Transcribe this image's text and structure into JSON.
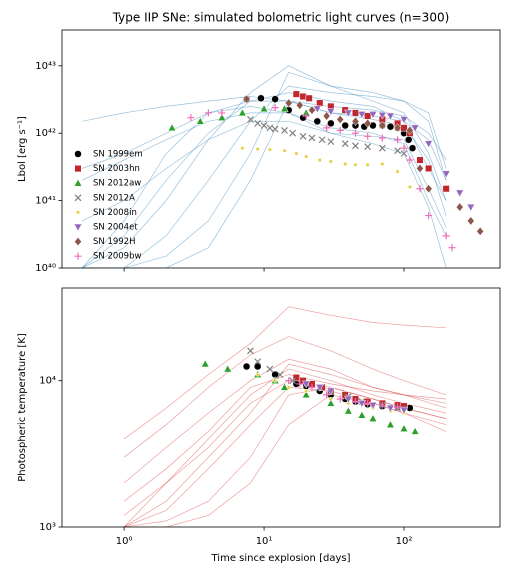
{
  "chart_data": [
    {
      "type": "line",
      "title": "Type IIP SNe: simulated bolometric light curves (n=300)",
      "ylabel": "Lbol [erg s⁻¹]",
      "xlog": true,
      "ylog": true,
      "xlim": [
        0.36,
        485
      ],
      "ylim": [
        1e+40,
        3.4e+43
      ],
      "xticks": [
        1,
        10,
        100
      ],
      "yticks": [
        {
          "value": 1e+40,
          "label": "10⁴⁰"
        },
        {
          "value": 1e+41,
          "label": "10⁴¹"
        },
        {
          "value": 1e+42,
          "label": "10⁴²"
        },
        {
          "value": 1e+43,
          "label": "10⁴³"
        }
      ],
      "legend": "upper left",
      "simulation_color": "#1f77b4",
      "simulation_x": [
        0.5,
        1,
        2,
        4,
        8,
        15,
        30,
        60,
        100,
        150,
        200
      ],
      "simulations": [
        [
          1e+40,
          3e+40,
          2e+41,
          1e+42,
          3e+42,
          4e+42,
          3e+42,
          2.5e+42,
          1.5e+42,
          3e+41,
          1e+41
        ],
        [
          3e+41,
          5e+41,
          1e+42,
          2e+42,
          3e+42,
          3e+42,
          2e+42,
          1.8e+42,
          1.5e+42,
          8e+41,
          2e+41
        ],
        [
          1e+40,
          1e+40,
          1.5e+40,
          5e+40,
          5e+41,
          8e+42,
          5e+42,
          3e+42,
          2e+42,
          5e+41,
          1e+41
        ],
        [
          2e+41,
          4e+41,
          8e+41,
          1.5e+42,
          2e+42,
          2e+42,
          1.2e+42,
          1e+42,
          7e+41,
          1e+41,
          3e+40
        ],
        [
          1e+40,
          2e+40,
          1e+41,
          8e+41,
          4e+42,
          1e+43,
          5e+42,
          4e+42,
          3e+42,
          2e+42,
          3e+41
        ],
        [
          5e+40,
          1e+41,
          3e+41,
          8e+41,
          1.5e+42,
          1.5e+42,
          1e+42,
          9e+41,
          8e+41,
          1.5e+41,
          4e+40
        ],
        [
          1e+40,
          1e+40,
          1e+40,
          2e+40,
          2e+41,
          3e+42,
          2e+42,
          1.6e+42,
          1.3e+42,
          4e+41,
          6e+40
        ],
        [
          1.5e+42,
          2e+42,
          2.5e+42,
          3e+42,
          3.5e+42,
          3e+42,
          2.5e+42,
          2.2e+42,
          1.8e+42,
          1e+42,
          4e+41
        ],
        [
          1e+40,
          5e+40,
          5e+41,
          2e+42,
          2.5e+42,
          2e+42,
          1e+42,
          7e+41,
          5e+41,
          8e+40,
          1e+40
        ],
        [
          1e+40,
          1e+40,
          3e+40,
          2e+41,
          1.5e+42,
          5e+42,
          4e+42,
          3.5e+42,
          3e+42,
          1.5e+42,
          2e+41
        ]
      ],
      "series": [
        {
          "name": "SN 1999em",
          "color": "#000000",
          "marker": "o",
          "x": [
            7.5,
            9.5,
            12,
            15,
            19,
            24,
            30,
            38,
            45,
            52,
            60,
            70,
            80,
            90,
            100,
            108,
            115
          ],
          "values": [
            3.2e+42,
            3.3e+42,
            3.2e+42,
            2.2e+42,
            1.7e+42,
            1.5e+42,
            1.4e+42,
            1.3e+42,
            1.3e+42,
            1.25e+42,
            1.3e+42,
            1.3e+42,
            1.25e+42,
            1.2e+42,
            1e+42,
            8e+41,
            6e+41
          ]
        },
        {
          "name": "SN 2003hn",
          "color": "#c0272d",
          "marker": "s",
          "x": [
            17,
            19,
            21,
            25,
            30,
            38,
            45,
            55,
            70,
            90,
            100,
            110,
            130,
            150,
            200
          ],
          "values": [
            3.8e+42,
            3.5e+42,
            3.3e+42,
            2.8e+42,
            2.5e+42,
            2.2e+42,
            2e+42,
            1.8e+42,
            1.6e+42,
            1.4e+42,
            1.2e+42,
            1e+42,
            4e+41,
            3e+41,
            1.5e+41
          ]
        },
        {
          "name": "SN 2012aw",
          "color": "#2ca02c",
          "marker": "^",
          "x": [
            2.2,
            3.5,
            5,
            7,
            10,
            14,
            20
          ],
          "values": [
            1.2e+42,
            1.5e+42,
            1.7e+42,
            2e+42,
            2.3e+42,
            2.3e+42,
            2e+42
          ]
        },
        {
          "name": "SN 2012A",
          "color": "#808080",
          "marker": "x",
          "x": [
            8,
            9,
            10,
            11,
            12,
            14,
            16,
            19,
            22,
            26,
            30,
            38,
            45,
            55,
            70,
            90,
            100
          ],
          "values": [
            1.6e+42,
            1.4e+42,
            1.3e+42,
            1.2e+42,
            1.15e+42,
            1.1e+42,
            1e+42,
            9e+41,
            8.5e+41,
            8e+41,
            7.5e+41,
            7e+41,
            6.5e+41,
            6.3e+41,
            6e+41,
            5.5e+41,
            5e+41
          ]
        },
        {
          "name": "SN 2008in",
          "color": "#e0d040",
          "marker": ".",
          "x": [
            7,
            9,
            11,
            14,
            17,
            20,
            25,
            30,
            38,
            45,
            55,
            70,
            90,
            110
          ],
          "values": [
            6e+41,
            5.8e+41,
            5.7e+41,
            5.5e+41,
            5e+41,
            4.5e+41,
            4e+41,
            3.8e+41,
            3.5e+41,
            3.4e+41,
            3.4e+41,
            3.5e+41,
            2.7e+41,
            1.6e+41
          ]
        },
        {
          "name": "SN 2004et",
          "color": "#9467bd",
          "marker": "v",
          "x": [
            24,
            30,
            40,
            50,
            60,
            70,
            80,
            100,
            120,
            150,
            200,
            250,
            300
          ],
          "values": [
            2.3e+42,
            2.1e+42,
            2e+42,
            1.9e+42,
            1.9e+42,
            1.85e+42,
            1.8e+42,
            1.6e+42,
            1.2e+42,
            7e+41,
            2.5e+41,
            1.3e+41,
            8e+40
          ]
        },
        {
          "name": "SN 1992H",
          "color": "#8c564b",
          "marker": "D",
          "x": [
            7.5,
            15,
            18,
            22,
            28,
            35,
            45,
            55,
            70,
            90,
            110,
            130,
            150,
            250,
            300,
            350
          ],
          "values": [
            3.2e+42,
            2.8e+42,
            2.6e+42,
            2.2e+42,
            1.8e+42,
            1.6e+42,
            1.5e+42,
            1.4e+42,
            1.3e+42,
            1.2e+42,
            1.1e+42,
            3e+41,
            1.5e+41,
            8e+40,
            5e+40,
            3.5e+40
          ]
        },
        {
          "name": "SN 2009bw",
          "color": "#f06bb8",
          "marker": "+",
          "x": [
            3,
            4,
            5,
            12,
            20,
            28,
            35,
            45,
            55,
            70,
            90,
            100,
            110,
            130,
            150,
            200,
            220
          ],
          "values": [
            1.7e+42,
            2e+42,
            2e+42,
            2.4e+42,
            1.8e+42,
            1.2e+42,
            1.1e+42,
            1e+42,
            9e+41,
            8.5e+41,
            8e+41,
            6e+41,
            4e+41,
            1.5e+41,
            6e+40,
            3e+40,
            2e+40
          ]
        }
      ]
    },
    {
      "type": "line",
      "xlabel": "Time since explosion [days]",
      "ylabel": "Photospheric temperature [K]",
      "xlog": true,
      "ylog": true,
      "xlim": [
        0.36,
        485
      ],
      "ylim": [
        1000,
        43000
      ],
      "xticks": [
        {
          "value": 1,
          "label": "10⁰"
        },
        {
          "value": 10,
          "label": "10¹"
        },
        {
          "value": 100,
          "label": "10²"
        }
      ],
      "yticks": [
        {
          "value": 1000,
          "label": "10³"
        },
        {
          "value": 10000,
          "label": "10⁴"
        }
      ],
      "simulation_color": "#d62728",
      "simulation_x": [
        1,
        2,
        4,
        8,
        15,
        30,
        60,
        100,
        200
      ],
      "simulations": [
        [
          1000,
          2000,
          4000,
          8000,
          12000,
          10000,
          8000,
          7000,
          6000
        ],
        [
          2000,
          3500,
          6000,
          10000,
          14000,
          12000,
          9000,
          8000,
          7000
        ],
        [
          1000,
          1100,
          1500,
          3000,
          8000,
          9000,
          7500,
          6500,
          5500
        ],
        [
          3000,
          5000,
          9000,
          15000,
          20000,
          16000,
          12000,
          10000,
          8000
        ],
        [
          1000,
          1300,
          2500,
          5000,
          9000,
          8500,
          7000,
          6000,
          5000
        ],
        [
          1500,
          2500,
          4500,
          9000,
          11000,
          9500,
          8500,
          8000,
          7500
        ],
        [
          1000,
          1000,
          1200,
          2000,
          5000,
          8000,
          7000,
          6000,
          4500
        ],
        [
          4000,
          6500,
          11000,
          18000,
          32000,
          28000,
          25000,
          24000,
          23000
        ],
        [
          1200,
          2000,
          3500,
          7000,
          10000,
          9000,
          7500,
          6500,
          5500
        ],
        [
          1000,
          1500,
          3000,
          6000,
          13000,
          11000,
          9000,
          8000,
          6500
        ]
      ],
      "series": [
        {
          "color": "#000000",
          "marker": "o",
          "x": [
            7.5,
            9,
            12,
            17,
            20,
            25,
            30,
            38,
            45,
            55,
            70,
            90,
            110
          ],
          "values": [
            12500,
            12500,
            11000,
            9500,
            9200,
            8500,
            8000,
            7500,
            7200,
            6900,
            6700,
            6600,
            6500
          ]
        },
        {
          "color": "#c0272d",
          "marker": "s",
          "x": [
            17,
            19,
            22,
            26,
            30,
            38,
            45,
            55,
            70,
            90,
            100
          ],
          "values": [
            10500,
            10000,
            9500,
            9000,
            8500,
            8000,
            7500,
            7200,
            7000,
            6800,
            6700
          ]
        },
        {
          "color": "#2ca02c",
          "marker": "^",
          "x": [
            3.8,
            5.5,
            9,
            12,
            14,
            20,
            30,
            40,
            50,
            60,
            80,
            100,
            120
          ],
          "values": [
            13000,
            12000,
            11000,
            10000,
            9000,
            8000,
            7000,
            6200,
            5800,
            5500,
            5000,
            4700,
            4500
          ]
        },
        {
          "color": "#808080",
          "marker": "x",
          "x": [
            8,
            9,
            11,
            13,
            16,
            20,
            25,
            30,
            40,
            50,
            70,
            90
          ],
          "values": [
            16000,
            13500,
            12000,
            11000,
            10000,
            9500,
            9000,
            8500,
            7800,
            7200,
            6800,
            6500
          ]
        },
        {
          "color": "#e0d040",
          "marker": ".",
          "x": [
            9,
            12,
            15,
            20,
            30,
            40,
            60,
            80,
            100
          ],
          "values": [
            11000,
            10000,
            9000,
            8500,
            7500,
            7000,
            6500,
            6200,
            6000
          ]
        },
        {
          "color": "#9467bd",
          "marker": "v",
          "x": [
            20,
            25,
            30,
            40,
            50,
            60,
            80,
            100
          ],
          "values": [
            9500,
            9000,
            8500,
            7500,
            7000,
            6800,
            6500,
            6300
          ]
        },
        {
          "color": "#f06bb8",
          "marker": "+",
          "x": [
            15,
            18,
            22,
            28,
            35,
            45,
            55,
            70,
            90
          ],
          "values": [
            10000,
            9500,
            9000,
            8000,
            7500,
            7200,
            7000,
            6800,
            6600
          ]
        }
      ]
    }
  ]
}
